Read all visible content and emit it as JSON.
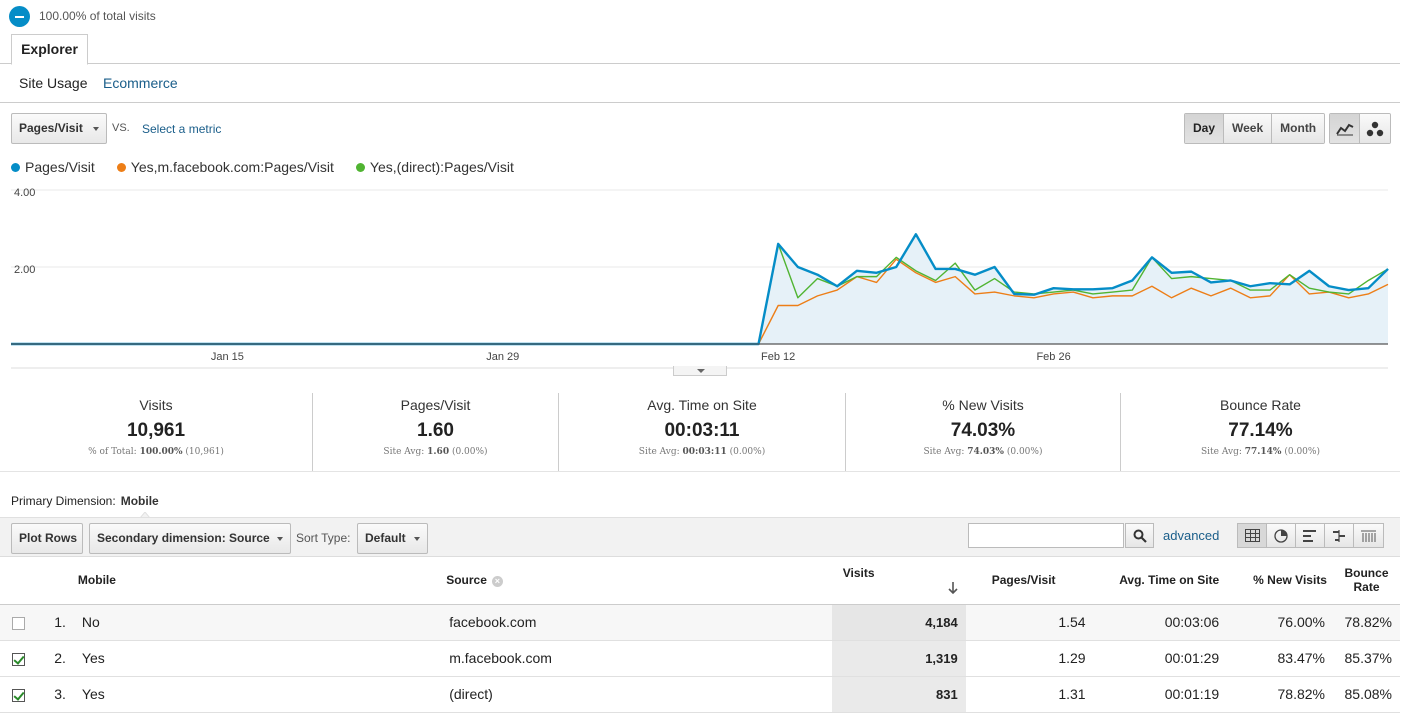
{
  "segment": {
    "pct_text": "100.00% of total visits",
    "color": "#058dc7"
  },
  "tabs": {
    "explorer": "Explorer"
  },
  "subnav": {
    "site_usage": "Site Usage",
    "ecommerce": "Ecommerce"
  },
  "controls": {
    "metric": "Pages/Visit",
    "vs": "VS.",
    "select_metric": "Select a metric",
    "periods": [
      "Day",
      "Week",
      "Month"
    ],
    "active_period": "Day"
  },
  "legend": [
    {
      "name": "Pages/Visit",
      "color": "#058dc7"
    },
    {
      "name": "Yes,m.facebook.com:Pages/Visit",
      "color": "#ed7e17"
    },
    {
      "name": "Yes,(direct):Pages/Visit",
      "color": "#50b432"
    }
  ],
  "chart_data": {
    "type": "line",
    "y_ticks": [
      "4.00",
      "2.00"
    ],
    "ylim": [
      0,
      4
    ],
    "x_labels": [
      "Jan 15",
      "Jan 29",
      "Feb 12",
      "Feb 26"
    ],
    "x_label_index": [
      11,
      25,
      39,
      53
    ],
    "series": [
      {
        "name": "Pages/Visit",
        "color": "#058dc7",
        "values": [
          0,
          0,
          0,
          0,
          0,
          0,
          0,
          0,
          0,
          0,
          0,
          0,
          0,
          0,
          0,
          0,
          0,
          0,
          0,
          0,
          0,
          0,
          0,
          0,
          0,
          0,
          0,
          0,
          0,
          0,
          0,
          0,
          0,
          0,
          0,
          0,
          0,
          0,
          0,
          2.6,
          2.0,
          1.8,
          1.5,
          1.9,
          1.85,
          2.0,
          2.85,
          1.95,
          1.95,
          1.8,
          2.0,
          1.3,
          1.28,
          1.45,
          1.42,
          1.42,
          1.45,
          1.65,
          2.25,
          1.85,
          1.88,
          1.6,
          1.65,
          1.5,
          1.58,
          1.55,
          1.9,
          1.5,
          1.4,
          1.45,
          1.95
        ]
      },
      {
        "name": "Yes,m.facebook.com:Pages/Visit",
        "color": "#ed7e17",
        "values": [
          0,
          0,
          0,
          0,
          0,
          0,
          0,
          0,
          0,
          0,
          0,
          0,
          0,
          0,
          0,
          0,
          0,
          0,
          0,
          0,
          0,
          0,
          0,
          0,
          0,
          0,
          0,
          0,
          0,
          0,
          0,
          0,
          0,
          0,
          0,
          0,
          0,
          0,
          0,
          1.0,
          1.0,
          1.25,
          1.4,
          1.75,
          1.6,
          2.2,
          1.85,
          1.6,
          1.75,
          1.3,
          1.35,
          1.25,
          1.2,
          1.3,
          1.35,
          1.2,
          1.25,
          1.25,
          1.5,
          1.2,
          1.45,
          1.25,
          1.45,
          1.2,
          1.25,
          1.8,
          1.3,
          1.35,
          1.2,
          1.3,
          1.55
        ]
      },
      {
        "name": "Yes,(direct):Pages/Visit",
        "color": "#50b432",
        "values": [
          0,
          0,
          0,
          0,
          0,
          0,
          0,
          0,
          0,
          0,
          0,
          0,
          0,
          0,
          0,
          0,
          0,
          0,
          0,
          0,
          0,
          0,
          0,
          0,
          0,
          0,
          0,
          0,
          0,
          0,
          0,
          0,
          0,
          0,
          0,
          0,
          0,
          0,
          0,
          2.6,
          1.2,
          1.7,
          1.5,
          1.75,
          1.75,
          2.25,
          1.9,
          1.65,
          2.1,
          1.4,
          1.7,
          1.35,
          1.3,
          1.35,
          1.4,
          1.3,
          1.35,
          1.4,
          2.25,
          1.7,
          1.75,
          1.7,
          1.65,
          1.4,
          1.4,
          1.8,
          1.45,
          1.35,
          1.3,
          1.65,
          1.95
        ]
      }
    ]
  },
  "summary": [
    {
      "label": "Visits",
      "value": "10,961",
      "sub_prefix": "% of Total: ",
      "sub_bold": "100.00%",
      "sub_rest": " (10,961)"
    },
    {
      "label": "Pages/Visit",
      "value": "1.60",
      "sub_prefix": "Site Avg: ",
      "sub_bold": "1.60",
      "sub_rest": " (0.00%)"
    },
    {
      "label": "Avg. Time on Site",
      "value": "00:03:11",
      "sub_prefix": "Site Avg: ",
      "sub_bold": "00:03:11",
      "sub_rest": " (0.00%)"
    },
    {
      "label": "% New Visits",
      "value": "74.03%",
      "sub_prefix": "Site Avg: ",
      "sub_bold": "74.03%",
      "sub_rest": " (0.00%)"
    },
    {
      "label": "Bounce Rate",
      "value": "77.14%",
      "sub_prefix": "Site Avg: ",
      "sub_bold": "77.14%",
      "sub_rest": " (0.00%)"
    }
  ],
  "primary_dimension": {
    "label": "Primary Dimension:",
    "value": "Mobile"
  },
  "toolbar": {
    "plot_rows": "Plot Rows",
    "secondary": "Secondary dimension: Source",
    "sort_label": "Sort Type:",
    "sort_value": "Default",
    "advanced": "advanced",
    "search_value": ""
  },
  "table": {
    "headers": {
      "mobile": "Mobile",
      "source": "Source",
      "visits": "Visits",
      "pages": "Pages/Visit",
      "time": "Avg. Time on Site",
      "newvisits": "% New Visits",
      "bounce": "Bounce Rate"
    },
    "rows": [
      {
        "idx": "1.",
        "checked": false,
        "mobile": "No",
        "source": "facebook.com",
        "visits": "4,184",
        "pages": "1.54",
        "time": "00:03:06",
        "newvisits": "76.00%",
        "bounce": "78.82%"
      },
      {
        "idx": "2.",
        "checked": true,
        "mobile": "Yes",
        "source": "m.facebook.com",
        "visits": "1,319",
        "pages": "1.29",
        "time": "00:01:29",
        "newvisits": "83.47%",
        "bounce": "85.37%"
      },
      {
        "idx": "3.",
        "checked": true,
        "mobile": "Yes",
        "source": "(direct)",
        "visits": "831",
        "pages": "1.31",
        "time": "00:01:19",
        "newvisits": "78.82%",
        "bounce": "85.08%"
      }
    ]
  }
}
